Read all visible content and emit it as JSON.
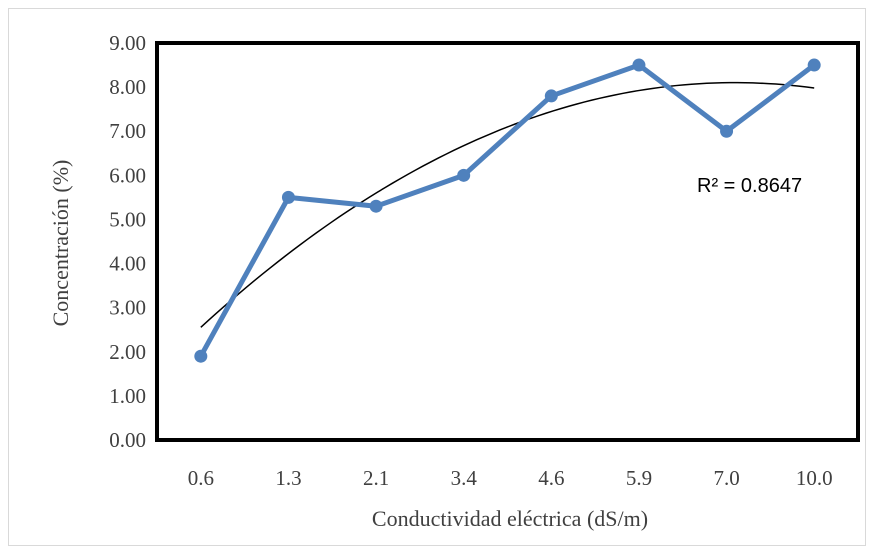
{
  "chart_data": {
    "type": "line",
    "categories": [
      "0.6",
      "1.3",
      "2.1",
      "3.4",
      "4.6",
      "5.9",
      "7.0",
      "10.0"
    ],
    "series": [
      {
        "values": [
          1.9,
          5.5,
          5.3,
          6.0,
          7.8,
          8.5,
          7.0,
          8.5
        ],
        "color": "#4f81bd"
      }
    ],
    "trendline": {
      "type": "polynomial",
      "order": 2,
      "color": "#000000",
      "label": "R² = 0.8647"
    },
    "xlabel": "Conductividad eléctrica (dS/m)",
    "ylabel": "Concentración (%)",
    "ylim": [
      0,
      9
    ],
    "ytick_step": 1,
    "ytick_labels": [
      "0.00",
      "1.00",
      "2.00",
      "3.00",
      "4.00",
      "5.00",
      "6.00",
      "7.00",
      "8.00",
      "9.00"
    ],
    "grid": false
  }
}
